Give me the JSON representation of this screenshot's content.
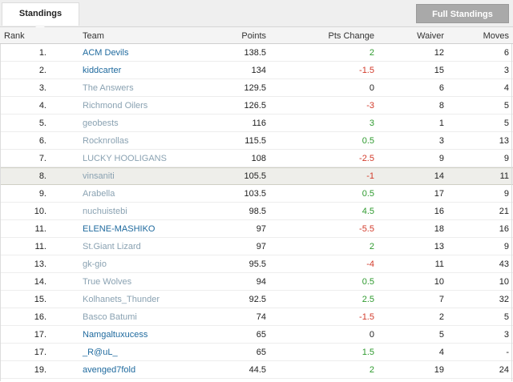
{
  "tabs": {
    "standings": "Standings",
    "full_standings": "Full Standings"
  },
  "headers": {
    "rank": "Rank",
    "team": "Team",
    "points": "Points",
    "pts_change": "Pts Change",
    "waiver": "Waiver",
    "moves": "Moves"
  },
  "rows": [
    {
      "rank": "1.",
      "team": "ACM Devils",
      "points": "138.5",
      "pts_change": "2",
      "waiver": "12",
      "moves": "6",
      "active": true
    },
    {
      "rank": "2.",
      "team": "kiddcarter",
      "points": "134",
      "pts_change": "-1.5",
      "waiver": "15",
      "moves": "3",
      "active": true
    },
    {
      "rank": "3.",
      "team": "The Answers",
      "points": "129.5",
      "pts_change": "0",
      "waiver": "6",
      "moves": "4",
      "active": false
    },
    {
      "rank": "4.",
      "team": "Richmond Oilers",
      "points": "126.5",
      "pts_change": "-3",
      "waiver": "8",
      "moves": "5",
      "active": false
    },
    {
      "rank": "5.",
      "team": "geobests",
      "points": "116",
      "pts_change": "3",
      "waiver": "1",
      "moves": "5",
      "active": false
    },
    {
      "rank": "6.",
      "team": "Rocknrollas",
      "points": "115.5",
      "pts_change": "0.5",
      "waiver": "3",
      "moves": "13",
      "active": false
    },
    {
      "rank": "7.",
      "team": "LUCKY HOOLIGANS",
      "points": "108",
      "pts_change": "-2.5",
      "waiver": "9",
      "moves": "9",
      "active": false
    },
    {
      "rank": "8.",
      "team": "vinsaniti",
      "points": "105.5",
      "pts_change": "-1",
      "waiver": "14",
      "moves": "11",
      "active": false,
      "highlight": true
    },
    {
      "rank": "9.",
      "team": "Arabella",
      "points": "103.5",
      "pts_change": "0.5",
      "waiver": "17",
      "moves": "9",
      "active": false
    },
    {
      "rank": "10.",
      "team": "nuchuistebi",
      "points": "98.5",
      "pts_change": "4.5",
      "waiver": "16",
      "moves": "21",
      "active": false
    },
    {
      "rank": "11.",
      "team": "ELENE-MASHIKO",
      "points": "97",
      "pts_change": "-5.5",
      "waiver": "18",
      "moves": "16",
      "active": true
    },
    {
      "rank": "11.",
      "team": "St.Giant Lizard",
      "points": "97",
      "pts_change": "2",
      "waiver": "13",
      "moves": "9",
      "active": false
    },
    {
      "rank": "13.",
      "team": "gk-gio",
      "points": "95.5",
      "pts_change": "-4",
      "waiver": "11",
      "moves": "43",
      "active": false
    },
    {
      "rank": "14.",
      "team": "True Wolves",
      "points": "94",
      "pts_change": "0.5",
      "waiver": "10",
      "moves": "10",
      "active": false
    },
    {
      "rank": "15.",
      "team": "Kolhanets_Thunder",
      "points": "92.5",
      "pts_change": "2.5",
      "waiver": "7",
      "moves": "32",
      "active": false
    },
    {
      "rank": "16.",
      "team": "Basco Batumi",
      "points": "74",
      "pts_change": "-1.5",
      "waiver": "2",
      "moves": "5",
      "active": false
    },
    {
      "rank": "17.",
      "team": "Namgaltuxucess",
      "points": "65",
      "pts_change": "0",
      "waiver": "5",
      "moves": "3",
      "active": true
    },
    {
      "rank": "17.",
      "team": "_R@uL_",
      "points": "65",
      "pts_change": "1.5",
      "waiver": "4",
      "moves": "-",
      "active": true
    },
    {
      "rank": "19.",
      "team": "avenged7fold",
      "points": "44.5",
      "pts_change": "2",
      "waiver": "19",
      "moves": "24",
      "active": true
    }
  ],
  "colors": {
    "positive": "#2e9a2e",
    "negative": "#d23a2a",
    "team_active": "#1f6a9e",
    "team_inactive": "#8aa2b2",
    "highlight_row": "#eeeeea",
    "button": "#a9a9a9"
  }
}
